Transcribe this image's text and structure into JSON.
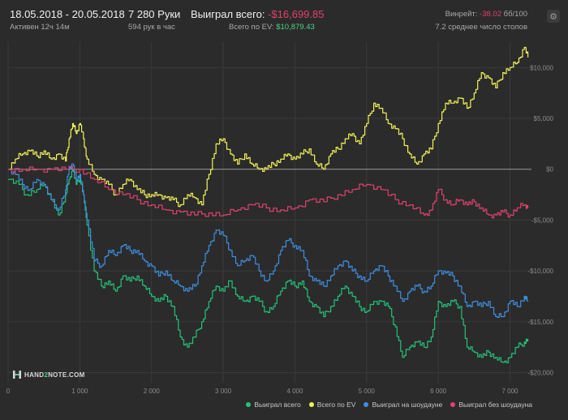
{
  "header": {
    "date_range": "18.05.2018 - 20.05.2018",
    "active": "Активен 12ч 14м",
    "hands": "7 280 Руки",
    "hands_rate": "594 рук в час",
    "won_label": "Выиграл всего:",
    "won_value": "-$16,699.85",
    "ev_label": "Всего по EV:",
    "ev_value": "$10,879.43",
    "winrate_label": "Винрейт:",
    "winrate_value": "-38.02",
    "winrate_unit": "бб/100",
    "tables": "7.2 среднее число столов"
  },
  "logo": {
    "part1": "HAND",
    "part2": "2",
    "part3": "NOTE.COM"
  },
  "colors": {
    "background": "#2b2b2b",
    "won": "#23c27a",
    "ev": "#f2f25a",
    "showdown": "#3d8fe0",
    "nonshowdown": "#e0416e",
    "zero_line": "#9a9a9a"
  },
  "chart_data": {
    "type": "line",
    "x_ticks": [
      0,
      1000,
      2000,
      3000,
      4000,
      5000,
      6000,
      7000
    ],
    "x_tick_labels": [
      "0",
      "1 000",
      "2 000",
      "3 000",
      "4 000",
      "5 000",
      "6 000",
      "7 000"
    ],
    "y_ticks": [
      10000,
      5000,
      0,
      -5000,
      -10000,
      -15000,
      -20000
    ],
    "y_tick_labels": [
      "$10,000",
      "$5,000",
      "$0",
      "-$5,000",
      "-$10,000",
      "-$15,000",
      "-$20,000"
    ],
    "xlim": [
      0,
      7300
    ],
    "ylim": [
      -21000,
      12500
    ],
    "grid": true,
    "legend_position": "bottom-right",
    "series": [
      {
        "name": "Выиграл всего",
        "color": "#23c27a",
        "points": [
          [
            0,
            -1000
          ],
          [
            150,
            -1500
          ],
          [
            250,
            -2500
          ],
          [
            400,
            -2000
          ],
          [
            500,
            -1500
          ],
          [
            600,
            -3000
          ],
          [
            700,
            -4500
          ],
          [
            800,
            -2500
          ],
          [
            850,
            -1000
          ],
          [
            900,
            0
          ],
          [
            950,
            -1500
          ],
          [
            1000,
            -800
          ],
          [
            1050,
            -2500
          ],
          [
            1100,
            -5500
          ],
          [
            1200,
            -10000
          ],
          [
            1300,
            -11500
          ],
          [
            1400,
            -11000
          ],
          [
            1500,
            -12000
          ],
          [
            1600,
            -10500
          ],
          [
            1700,
            -11000
          ],
          [
            1800,
            -10500
          ],
          [
            1900,
            -11500
          ],
          [
            2000,
            -12500
          ],
          [
            2100,
            -13000
          ],
          [
            2200,
            -12500
          ],
          [
            2300,
            -13500
          ],
          [
            2400,
            -16500
          ],
          [
            2500,
            -17500
          ],
          [
            2600,
            -16500
          ],
          [
            2700,
            -15000
          ],
          [
            2800,
            -13000
          ],
          [
            2900,
            -11500
          ],
          [
            3000,
            -12000
          ],
          [
            3100,
            -11000
          ],
          [
            3200,
            -12500
          ],
          [
            3300,
            -13000
          ],
          [
            3400,
            -12500
          ],
          [
            3500,
            -13000
          ],
          [
            3600,
            -14000
          ],
          [
            3700,
            -13500
          ],
          [
            3800,
            -12000
          ],
          [
            3900,
            -11000
          ],
          [
            4000,
            -11500
          ],
          [
            4100,
            -11000
          ],
          [
            4200,
            -13000
          ],
          [
            4300,
            -13500
          ],
          [
            4400,
            -14500
          ],
          [
            4500,
            -13500
          ],
          [
            4600,
            -12500
          ],
          [
            4700,
            -11500
          ],
          [
            4800,
            -12500
          ],
          [
            4900,
            -13500
          ],
          [
            5000,
            -14000
          ],
          [
            5100,
            -13000
          ],
          [
            5200,
            -13000
          ],
          [
            5300,
            -13500
          ],
          [
            5400,
            -15500
          ],
          [
            5500,
            -18500
          ],
          [
            5600,
            -17500
          ],
          [
            5700,
            -17000
          ],
          [
            5800,
            -17500
          ],
          [
            5900,
            -16500
          ],
          [
            6000,
            -13000
          ],
          [
            6100,
            -13500
          ],
          [
            6200,
            -13000
          ],
          [
            6300,
            -13500
          ],
          [
            6400,
            -17500
          ],
          [
            6500,
            -18000
          ],
          [
            6600,
            -18500
          ],
          [
            6700,
            -18000
          ],
          [
            6800,
            -18500
          ],
          [
            6900,
            -19000
          ],
          [
            7000,
            -18500
          ],
          [
            7100,
            -17500
          ],
          [
            7200,
            -17000
          ],
          [
            7250,
            -16700
          ]
        ]
      },
      {
        "name": "Всего по EV",
        "color": "#f2f25a",
        "points": [
          [
            0,
            0
          ],
          [
            100,
            1000
          ],
          [
            200,
            1500
          ],
          [
            300,
            1800
          ],
          [
            400,
            1300
          ],
          [
            500,
            1800
          ],
          [
            600,
            1000
          ],
          [
            700,
            1500
          ],
          [
            800,
            800
          ],
          [
            850,
            3000
          ],
          [
            900,
            4500
          ],
          [
            950,
            3500
          ],
          [
            1000,
            4500
          ],
          [
            1050,
            3000
          ],
          [
            1100,
            1000
          ],
          [
            1200,
            -500
          ],
          [
            1300,
            -1000
          ],
          [
            1400,
            -1500
          ],
          [
            1500,
            -2500
          ],
          [
            1600,
            -1500
          ],
          [
            1700,
            -1000
          ],
          [
            1800,
            -2000
          ],
          [
            1900,
            -2500
          ],
          [
            2000,
            -2500
          ],
          [
            2100,
            -2500
          ],
          [
            2200,
            -2800
          ],
          [
            2300,
            -3000
          ],
          [
            2400,
            -3500
          ],
          [
            2500,
            -2500
          ],
          [
            2600,
            -2800
          ],
          [
            2700,
            -3500
          ],
          [
            2800,
            -500
          ],
          [
            2900,
            2500
          ],
          [
            3000,
            3000
          ],
          [
            3100,
            1500
          ],
          [
            3200,
            500
          ],
          [
            3300,
            1500
          ],
          [
            3400,
            500
          ],
          [
            3500,
            0
          ],
          [
            3600,
            0
          ],
          [
            3700,
            500
          ],
          [
            3800,
            1000
          ],
          [
            3900,
            1500
          ],
          [
            4000,
            1000
          ],
          [
            4100,
            1500
          ],
          [
            4200,
            2000
          ],
          [
            4300,
            500
          ],
          [
            4400,
            0
          ],
          [
            4500,
            1500
          ],
          [
            4600,
            2000
          ],
          [
            4700,
            3000
          ],
          [
            4800,
            3500
          ],
          [
            4900,
            2500
          ],
          [
            5000,
            4500
          ],
          [
            5100,
            6500
          ],
          [
            5200,
            6000
          ],
          [
            5300,
            4500
          ],
          [
            5400,
            4000
          ],
          [
            5500,
            3000
          ],
          [
            5600,
            1500
          ],
          [
            5700,
            500
          ],
          [
            5800,
            1500
          ],
          [
            5900,
            2000
          ],
          [
            6000,
            4500
          ],
          [
            6100,
            6500
          ],
          [
            6200,
            6500
          ],
          [
            6300,
            7000
          ],
          [
            6400,
            6000
          ],
          [
            6500,
            7500
          ],
          [
            6600,
            9500
          ],
          [
            6700,
            9000
          ],
          [
            6800,
            8000
          ],
          [
            6900,
            9500
          ],
          [
            7000,
            10000
          ],
          [
            7100,
            10500
          ],
          [
            7200,
            12000
          ],
          [
            7250,
            11000
          ]
        ]
      },
      {
        "name": "Выиграл на шоудауне",
        "color": "#3d8fe0",
        "points": [
          [
            0,
            0
          ],
          [
            100,
            -500
          ],
          [
            200,
            -1500
          ],
          [
            300,
            -2000
          ],
          [
            400,
            -1000
          ],
          [
            500,
            -1500
          ],
          [
            600,
            -3000
          ],
          [
            700,
            -4000
          ],
          [
            800,
            -2000
          ],
          [
            850,
            0
          ],
          [
            900,
            500
          ],
          [
            950,
            -1000
          ],
          [
            1000,
            -500
          ],
          [
            1050,
            -2500
          ],
          [
            1100,
            -5000
          ],
          [
            1200,
            -9000
          ],
          [
            1300,
            -9500
          ],
          [
            1400,
            -8000
          ],
          [
            1500,
            -8500
          ],
          [
            1600,
            -7500
          ],
          [
            1700,
            -8000
          ],
          [
            1800,
            -8000
          ],
          [
            1900,
            -9000
          ],
          [
            2000,
            -9500
          ],
          [
            2100,
            -10500
          ],
          [
            2200,
            -10000
          ],
          [
            2300,
            -11000
          ],
          [
            2400,
            -11500
          ],
          [
            2500,
            -12000
          ],
          [
            2600,
            -11500
          ],
          [
            2700,
            -9500
          ],
          [
            2800,
            -7500
          ],
          [
            2900,
            -6000
          ],
          [
            3000,
            -6500
          ],
          [
            3100,
            -8000
          ],
          [
            3200,
            -9500
          ],
          [
            3300,
            -9000
          ],
          [
            3400,
            -8500
          ],
          [
            3500,
            -10000
          ],
          [
            3600,
            -11000
          ],
          [
            3700,
            -10000
          ],
          [
            3800,
            -8000
          ],
          [
            3900,
            -7000
          ],
          [
            4000,
            -7500
          ],
          [
            4100,
            -8000
          ],
          [
            4200,
            -10500
          ],
          [
            4300,
            -11000
          ],
          [
            4400,
            -11500
          ],
          [
            4500,
            -10500
          ],
          [
            4600,
            -9500
          ],
          [
            4700,
            -9000
          ],
          [
            4800,
            -10000
          ],
          [
            4900,
            -10500
          ],
          [
            5000,
            -11000
          ],
          [
            5100,
            -10000
          ],
          [
            5200,
            -9500
          ],
          [
            5300,
            -10500
          ],
          [
            5400,
            -11500
          ],
          [
            5500,
            -13000
          ],
          [
            5600,
            -12000
          ],
          [
            5700,
            -11500
          ],
          [
            5800,
            -12000
          ],
          [
            5900,
            -11500
          ],
          [
            6000,
            -10000
          ],
          [
            6100,
            -10200
          ],
          [
            6200,
            -10500
          ],
          [
            6300,
            -11500
          ],
          [
            6400,
            -13500
          ],
          [
            6500,
            -13000
          ],
          [
            6600,
            -13500
          ],
          [
            6700,
            -13000
          ],
          [
            6800,
            -14500
          ],
          [
            6900,
            -14500
          ],
          [
            7000,
            -13000
          ],
          [
            7100,
            -13500
          ],
          [
            7200,
            -12500
          ],
          [
            7250,
            -13000
          ]
        ]
      },
      {
        "name": "Выиграл без шоудауна",
        "color": "#e0416e",
        "points": [
          [
            0,
            0
          ],
          [
            200,
            0
          ],
          [
            400,
            0
          ],
          [
            600,
            0
          ],
          [
            800,
            0
          ],
          [
            1000,
            0
          ],
          [
            1200,
            -1000
          ],
          [
            1400,
            -2000
          ],
          [
            1600,
            -2500
          ],
          [
            1800,
            -3000
          ],
          [
            2000,
            -3500
          ],
          [
            2200,
            -4000
          ],
          [
            2400,
            -4200
          ],
          [
            2600,
            -4500
          ],
          [
            2800,
            -4300
          ],
          [
            3000,
            -4500
          ],
          [
            3200,
            -4000
          ],
          [
            3400,
            -3500
          ],
          [
            3600,
            -3800
          ],
          [
            3800,
            -4000
          ],
          [
            4000,
            -3800
          ],
          [
            4200,
            -3000
          ],
          [
            4400,
            -3200
          ],
          [
            4600,
            -2500
          ],
          [
            4800,
            -2000
          ],
          [
            5000,
            -1500
          ],
          [
            5200,
            -2000
          ],
          [
            5400,
            -3000
          ],
          [
            5600,
            -3500
          ],
          [
            5800,
            -4500
          ],
          [
            5900,
            -4000
          ],
          [
            6000,
            -2000
          ],
          [
            6100,
            -3000
          ],
          [
            6200,
            -3500
          ],
          [
            6300,
            -3000
          ],
          [
            6400,
            -3500
          ],
          [
            6500,
            -3200
          ],
          [
            6600,
            -3800
          ],
          [
            6700,
            -4500
          ],
          [
            6800,
            -4500
          ],
          [
            6900,
            -4200
          ],
          [
            7000,
            -4500
          ],
          [
            7100,
            -3800
          ],
          [
            7200,
            -3500
          ],
          [
            7250,
            -3800
          ]
        ]
      }
    ]
  }
}
